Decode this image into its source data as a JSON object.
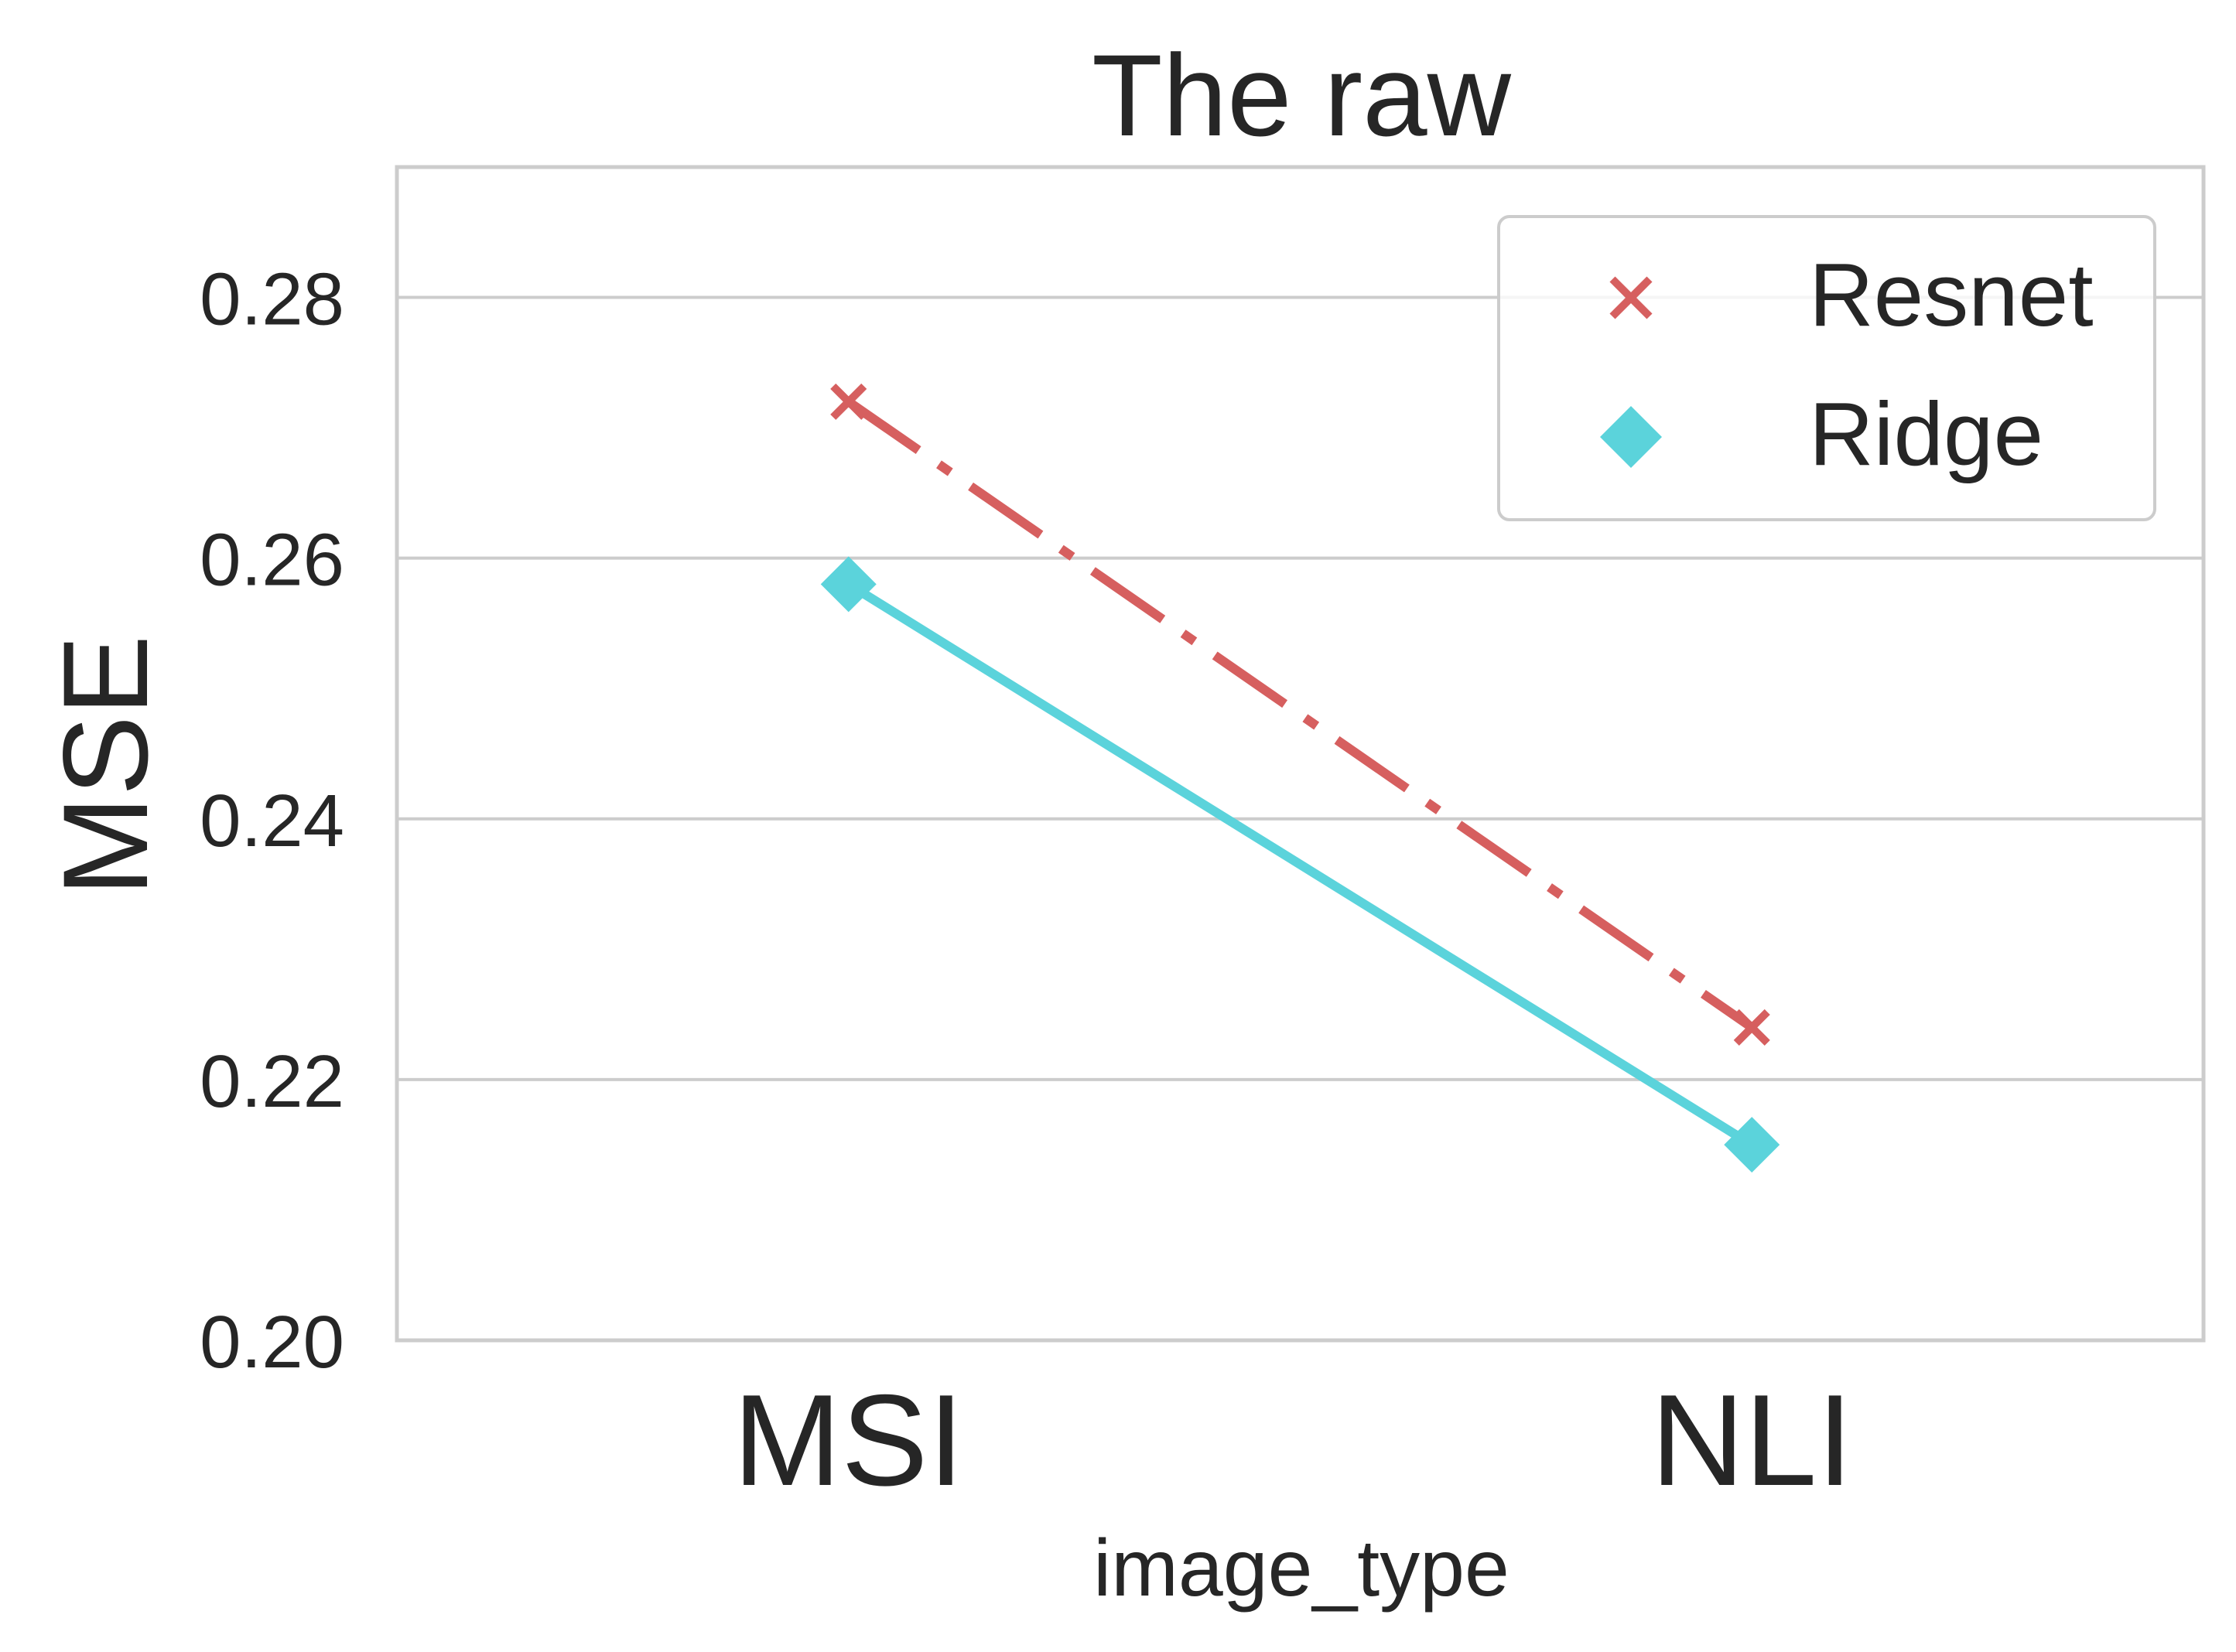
{
  "chart_data": {
    "type": "line",
    "title": "The raw",
    "xlabel": "image_type",
    "ylabel": "MSE",
    "categories": [
      "MSI",
      "NLI"
    ],
    "ylim": [
      0.2,
      0.29
    ],
    "yticks": [
      0.2,
      0.22,
      0.24,
      0.26,
      0.28
    ],
    "ytick_labels": [
      "0.20",
      "0.22",
      "0.24",
      "0.26",
      "0.28"
    ],
    "grid": "horizontal",
    "legend_position": "top-right",
    "series": [
      {
        "name": "Resnet",
        "values": [
          0.272,
          0.224
        ],
        "color": "#d65f5f",
        "marker": "x",
        "linestyle": "dashdot"
      },
      {
        "name": "Ridge",
        "values": [
          0.258,
          0.215
        ],
        "color": "#5bd3db",
        "marker": "diamond",
        "linestyle": "solid"
      }
    ]
  }
}
